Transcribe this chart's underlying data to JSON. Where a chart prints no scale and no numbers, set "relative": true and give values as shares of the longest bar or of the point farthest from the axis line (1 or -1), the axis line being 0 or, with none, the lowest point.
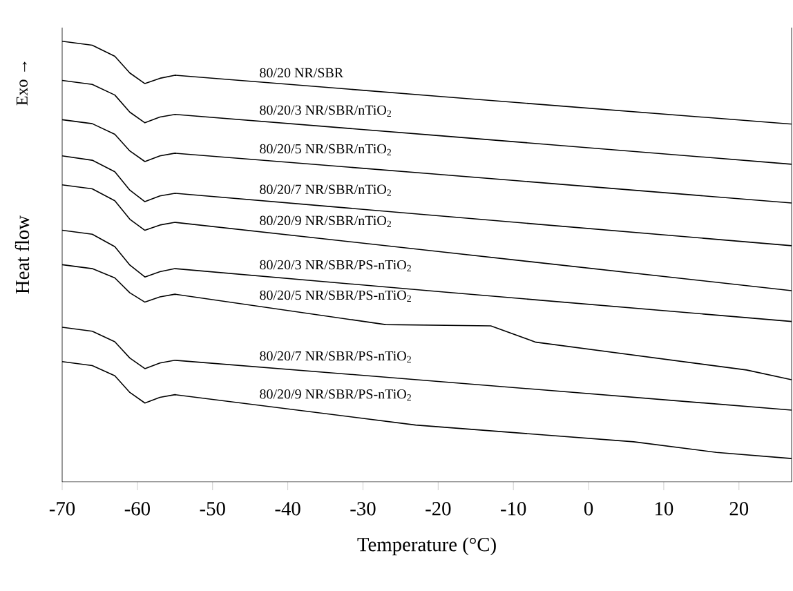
{
  "chart_data": {
    "type": "line",
    "relative": true,
    "xlabel": "Temperature (°C)",
    "ylabel": "Heat flow",
    "annotations": [
      "Exo →"
    ],
    "xlim": [
      -70,
      27
    ],
    "xticks": [
      -70,
      -60,
      -50,
      -40,
      -30,
      -20,
      -10,
      0,
      10,
      20
    ],
    "legend": false,
    "series": [
      {
        "name": "80/20 NR/SBR",
        "color": "#000000",
        "x": [
          -70,
          -66,
          -63,
          -61,
          -59,
          -57,
          -55,
          -20,
          27
        ],
        "values": [
          1.0,
          0.991,
          0.966,
          0.928,
          0.904,
          0.916,
          0.923,
          0.875,
          0.812
        ]
      },
      {
        "name": "80/20/3 NR/SBR/nTiO$_{2}$",
        "color": "#000000",
        "x": [
          -70,
          -66,
          -63,
          -61,
          -59,
          -57,
          -55,
          -20,
          27
        ],
        "values": [
          0.911,
          0.902,
          0.878,
          0.839,
          0.815,
          0.828,
          0.834,
          0.786,
          0.721
        ]
      },
      {
        "name": "80/20/5 NR/SBR/nTiO$_{2}$",
        "color": "#000000",
        "x": [
          -70,
          -66,
          -63,
          -61,
          -59,
          -57,
          -55,
          -20,
          27
        ],
        "values": [
          0.822,
          0.813,
          0.789,
          0.751,
          0.727,
          0.74,
          0.746,
          0.698,
          0.633
        ]
      },
      {
        "name": "80/20/7 NR/SBR/nTiO$_{2}$",
        "color": "#000000",
        "x": [
          -70,
          -66,
          -63,
          -61,
          -59,
          -57,
          -55,
          -20,
          27
        ],
        "values": [
          0.74,
          0.73,
          0.704,
          0.662,
          0.636,
          0.649,
          0.655,
          0.604,
          0.536
        ]
      },
      {
        "name": "80/20/9 NR/SBR/nTiO$_{2}$",
        "color": "#000000",
        "x": [
          -70,
          -66,
          -63,
          -61,
          -59,
          -57,
          -55,
          -20,
          27
        ],
        "values": [
          0.674,
          0.665,
          0.638,
          0.596,
          0.571,
          0.583,
          0.589,
          0.523,
          0.434
        ]
      },
      {
        "name": "80/20/3 NR/SBR/PS-nTiO$_{2}$",
        "color": "#000000",
        "x": [
          -70,
          -66,
          -63,
          -61,
          -59,
          -57,
          -55,
          -20,
          27
        ],
        "values": [
          0.571,
          0.562,
          0.534,
          0.492,
          0.465,
          0.477,
          0.484,
          0.432,
          0.364
        ]
      },
      {
        "name": "80/20/5 NR/SBR/PS-nTiO$_{2}$",
        "color": "#000000",
        "x": [
          -70,
          -66,
          -63,
          -61,
          -59,
          -57,
          -55,
          -27,
          -13,
          -7,
          21,
          27
        ],
        "values": [
          0.493,
          0.484,
          0.463,
          0.429,
          0.408,
          0.42,
          0.426,
          0.357,
          0.354,
          0.317,
          0.254,
          0.232
        ]
      },
      {
        "name": "80/20/7 NR/SBR/PS-nTiO$_{2}$",
        "color": "#000000",
        "x": [
          -70,
          -66,
          -63,
          -61,
          -59,
          -57,
          -55,
          -20,
          27
        ],
        "values": [
          0.351,
          0.342,
          0.318,
          0.281,
          0.257,
          0.27,
          0.276,
          0.228,
          0.163
        ]
      },
      {
        "name": "80/20/9 NR/SBR/PS-nTiO$_{2}$",
        "color": "#000000",
        "x": [
          -70,
          -66,
          -63,
          -61,
          -59,
          -57,
          -55,
          -23,
          6,
          17,
          27
        ],
        "values": [
          0.273,
          0.264,
          0.241,
          0.203,
          0.179,
          0.192,
          0.198,
          0.129,
          0.091,
          0.067,
          0.053
        ]
      }
    ]
  }
}
